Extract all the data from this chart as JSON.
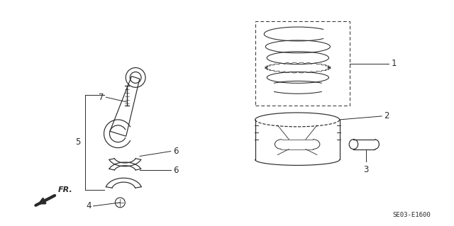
{
  "bg_color": "#ffffff",
  "line_color": "#2a2a2a",
  "doc_code": "SE03-E1600",
  "fig_width": 6.4,
  "fig_height": 3.19
}
